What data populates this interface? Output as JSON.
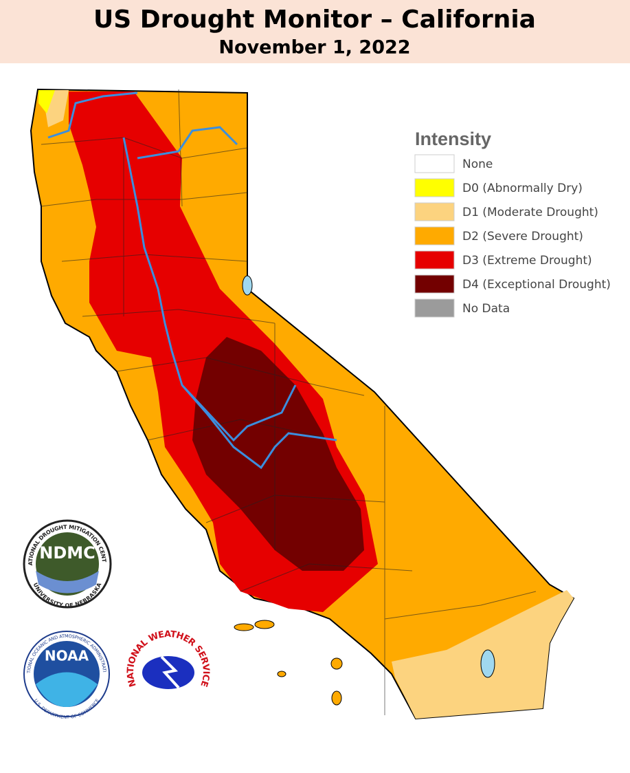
{
  "header": {
    "title": "US Drought Monitor – California",
    "subtitle": "November 1, 2022"
  },
  "legend": {
    "title": "Intensity",
    "items": [
      {
        "label": "None",
        "color": "#ffffff"
      },
      {
        "label": "D0 (Abnormally Dry)",
        "color": "#ffff00"
      },
      {
        "label": "D1 (Moderate Drought)",
        "color": "#fcd37f"
      },
      {
        "label": "D2 (Severe Drought)",
        "color": "#ffaa00"
      },
      {
        "label": "D3 (Extreme Drought)",
        "color": "#e60000"
      },
      {
        "label": "D4 (Exceptional Drought)",
        "color": "#730000"
      },
      {
        "label": "No Data",
        "color": "#9b9b9b"
      }
    ]
  },
  "logos": {
    "ndmc": {
      "abbr": "NDMC",
      "ring_top": "NATIONAL DROUGHT MITIGATION CENTER",
      "ring_bottom": "UNIVERSITY OF NEBRASKA"
    },
    "noaa": {
      "abbr": "NOAA",
      "ring_top": "NATIONAL OCEANIC AND ATMOSPHERIC ADMINISTRATION",
      "ring_bottom": "U.S. DEPARTMENT OF COMMERCE"
    },
    "nws": {
      "ring_top": "NATIONAL WEATHER SERVICE"
    }
  }
}
